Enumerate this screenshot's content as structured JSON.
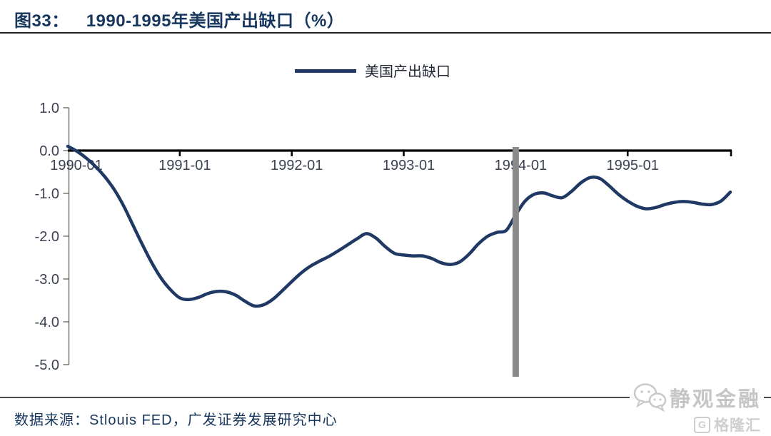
{
  "header": {
    "figure_label": "图33：",
    "title": "1990-1995年美国产出缺口（%）"
  },
  "legend": {
    "label": "美国产出缺口",
    "line_color": "#1f3864"
  },
  "chart_data": {
    "type": "line",
    "title": "1990-1995年美国产出缺口（%）",
    "unit": "%",
    "x_start_month": "1990-01",
    "x_tick_labels": [
      "1990-01",
      "1991-01",
      "1992-01",
      "1993-01",
      "1994-01",
      "1995-01"
    ],
    "x_tick_month_index": [
      0,
      12,
      24,
      36,
      48,
      60
    ],
    "y_ticks": [
      1.0,
      0.0,
      -1.0,
      -2.0,
      -3.0,
      -4.0,
      -5.0
    ],
    "y_tick_labels": [
      "1.0",
      "0.0",
      "-1.0",
      "-2.0",
      "-3.0",
      "-4.0",
      "-5.0"
    ],
    "ylim": [
      -5.0,
      1.0
    ],
    "grid": false,
    "legend_position": "top-center",
    "axis_color": "#000000",
    "y_axis_color": "#6e6e6e",
    "tick_label_color": "#3c4252",
    "series": [
      {
        "name": "美国产出缺口",
        "color": "#1f3864",
        "values": [
          0.1,
          -0.02,
          -0.18,
          -0.38,
          -0.62,
          -0.92,
          -1.3,
          -1.75,
          -2.2,
          -2.62,
          -2.98,
          -3.25,
          -3.44,
          -3.48,
          -3.43,
          -3.34,
          -3.29,
          -3.3,
          -3.38,
          -3.52,
          -3.63,
          -3.6,
          -3.47,
          -3.27,
          -3.06,
          -2.86,
          -2.7,
          -2.58,
          -2.47,
          -2.34,
          -2.2,
          -2.06,
          -1.94,
          -2.04,
          -2.24,
          -2.4,
          -2.44,
          -2.46,
          -2.46,
          -2.52,
          -2.62,
          -2.66,
          -2.6,
          -2.42,
          -2.18,
          -2.0,
          -1.91,
          -1.86,
          -1.5,
          -1.18,
          -1.02,
          -0.99,
          -1.06,
          -1.1,
          -0.95,
          -0.75,
          -0.63,
          -0.65,
          -0.82,
          -1.02,
          -1.18,
          -1.3,
          -1.36,
          -1.33,
          -1.26,
          -1.21,
          -1.19,
          -1.21,
          -1.25,
          -1.26,
          -1.18,
          -0.97
        ]
      }
    ],
    "annotation_vline": {
      "at": "1994-01",
      "color": "#8a8a8a"
    }
  },
  "footer": {
    "source": "数据来源：Stlouis FED，广发证券发展研究中心"
  },
  "watermark": {
    "name": "静观金融",
    "logo_letter": "G",
    "logo": "格隆汇"
  }
}
